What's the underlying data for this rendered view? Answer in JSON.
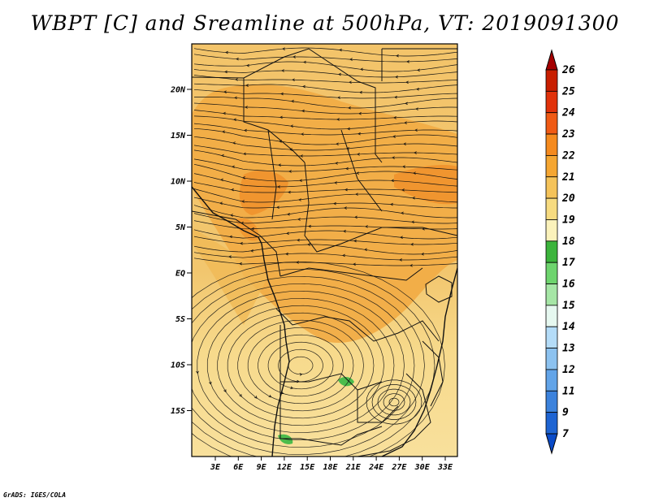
{
  "title": "WBPT [C] and Sreamline at 500hPa, VT: 2019091300",
  "footer": "GrADS: IGES/COLA",
  "map": {
    "lat_labels": [
      "20N",
      "15N",
      "10N",
      "5N",
      "EQ",
      "5S",
      "10S",
      "15S"
    ],
    "lon_labels": [
      "3E",
      "6E",
      "9E",
      "12E",
      "15E",
      "18E",
      "21E",
      "24E",
      "27E",
      "30E",
      "33E"
    ],
    "variable": "WBPT",
    "units": "C",
    "level": "500hPa"
  },
  "colorbar": {
    "labels": [
      "26",
      "25",
      "24",
      "23",
      "22",
      "21",
      "20",
      "19",
      "18",
      "17",
      "16",
      "15",
      "14",
      "13",
      "12",
      "11",
      "9",
      "7"
    ],
    "colors": [
      "#a50000",
      "#c81e00",
      "#e1320a",
      "#f05a14",
      "#f58a1e",
      "#f5a632",
      "#f5c35a",
      "#f7db80",
      "#fbf2bb",
      "#3cb43c",
      "#6ed46e",
      "#a6e6a6",
      "#e6f8f0",
      "#b4dcf8",
      "#8cc2f0",
      "#62a4e8",
      "#3c82dc",
      "#1e64d2",
      "#0a4bc8"
    ]
  }
}
